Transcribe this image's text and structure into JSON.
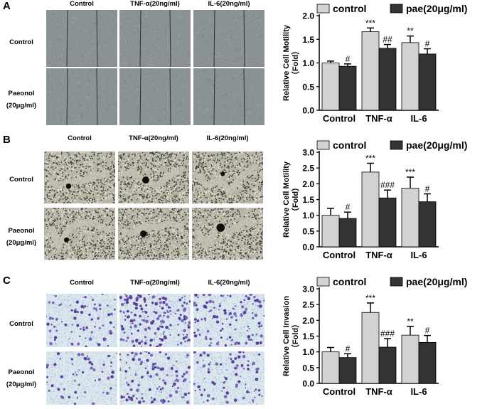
{
  "panels": [
    {
      "letter": "A",
      "image_style": "wound-healing-gray",
      "columns": [
        "Control",
        "TNF-α(20ng/ml)",
        "IL-6(20ng/ml)"
      ],
      "rows": [
        [
          "Control"
        ],
        [
          "Paeonol",
          "(20μg/ml)"
        ]
      ]
    },
    {
      "letter": "B",
      "image_style": "migration-speckle",
      "columns": [
        "Control",
        "TNF-α(20ng/ml)",
        "IL-6(20ng/ml)"
      ],
      "rows": [
        [
          "Control"
        ],
        [
          "Paeonol",
          "(20μg/ml)"
        ]
      ]
    },
    {
      "letter": "C",
      "image_style": "transwell-invasion-purple",
      "columns": [
        "Control",
        "TNF-α(20ng/ml)",
        "IL-6(20ng/ml)"
      ],
      "rows": [
        [
          "Control"
        ],
        [
          "Paeonol",
          "(20μg/ml)"
        ]
      ]
    }
  ],
  "chart_data": [
    {
      "type": "bar",
      "ylabel": "Relative Cell Motility",
      "ylabel2": "（Fold）",
      "ylim": [
        0,
        2.0
      ],
      "yticks": [
        "0.0",
        "0.5",
        "1.0",
        "1.5",
        "2.0"
      ],
      "categories": [
        "Control",
        "TNF-α",
        "IL-6"
      ],
      "legend_position": "top",
      "series": [
        {
          "name": "control",
          "color": "#d3d3d3",
          "values": [
            1.0,
            1.66,
            1.43
          ],
          "errors": [
            0.04,
            0.08,
            0.14
          ],
          "annotations": [
            "",
            "***",
            "**"
          ]
        },
        {
          "name": "pae(20μg/ml)",
          "color": "#333333",
          "values": [
            0.93,
            1.31,
            1.19
          ],
          "errors": [
            0.05,
            0.08,
            0.11
          ],
          "annotations": [
            "#",
            "##",
            "#"
          ]
        }
      ]
    },
    {
      "type": "bar",
      "ylabel": "Relative Cell Motility",
      "ylabel2": "（Fold）",
      "ylim": [
        0,
        3.0
      ],
      "yticks": [
        "0.0",
        "0.5",
        "1.0",
        "1.5",
        "2.0",
        "2.5",
        "3.0"
      ],
      "categories": [
        "Control",
        "TNF-α",
        "IL-6"
      ],
      "legend_position": "top",
      "series": [
        {
          "name": "control",
          "color": "#d3d3d3",
          "values": [
            1.0,
            2.37,
            1.86
          ],
          "errors": [
            0.22,
            0.28,
            0.35
          ],
          "annotations": [
            "",
            "***",
            "***"
          ]
        },
        {
          "name": "pae(20μg/ml)",
          "color": "#333333",
          "values": [
            0.9,
            1.55,
            1.43
          ],
          "errors": [
            0.2,
            0.25,
            0.25
          ],
          "annotations": [
            "#",
            "###",
            "#"
          ]
        }
      ]
    },
    {
      "type": "bar",
      "ylabel": "Relative Cell Invasion",
      "ylabel2": "（Fold）",
      "ylim": [
        0,
        3.0
      ],
      "yticks": [
        "0.0",
        "0.5",
        "1.0",
        "1.5",
        "2.0",
        "2.5",
        "3.0"
      ],
      "categories": [
        "Control",
        "TNF-α",
        "IL-6"
      ],
      "legend_position": "top",
      "series": [
        {
          "name": "control",
          "color": "#d3d3d3",
          "values": [
            1.0,
            2.25,
            1.53
          ],
          "errors": [
            0.14,
            0.3,
            0.28
          ],
          "annotations": [
            "",
            "***",
            "**"
          ]
        },
        {
          "name": "pae(20μg/ml)",
          "color": "#333333",
          "values": [
            0.82,
            1.15,
            1.3
          ],
          "errors": [
            0.12,
            0.27,
            0.22
          ],
          "annotations": [
            "#",
            "###",
            "#"
          ]
        }
      ]
    }
  ]
}
